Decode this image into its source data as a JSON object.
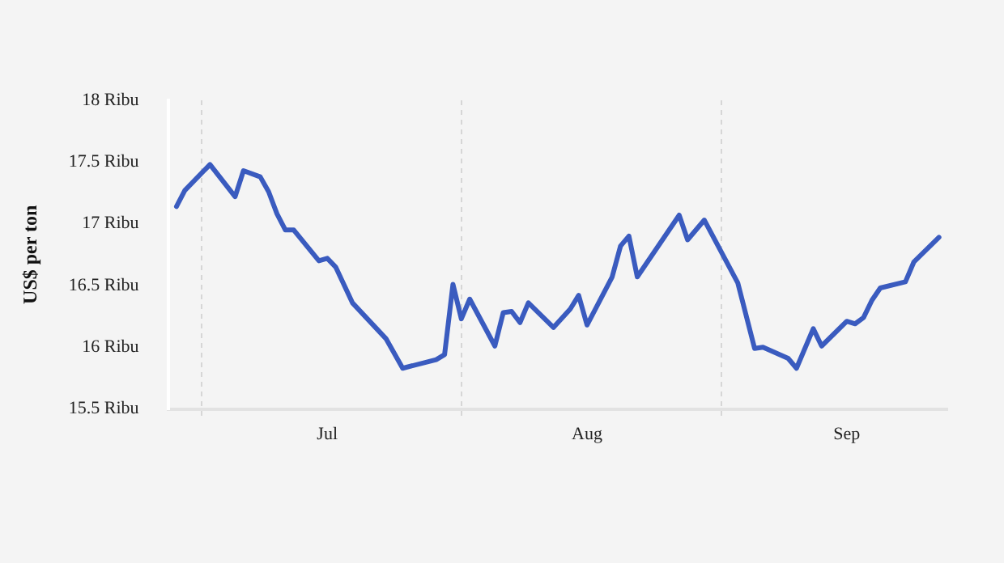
{
  "chart_data": {
    "type": "line",
    "ylabel": "US$ per ton",
    "x": [
      "--06-28",
      "--06-29",
      "--07-02",
      "--07-05",
      "--07-06",
      "--07-08",
      "--07-09",
      "--07-10",
      "--07-11",
      "--07-12",
      "--07-15",
      "--07-16",
      "--07-17",
      "--07-19",
      "--07-23",
      "--07-25",
      "--07-29",
      "--07-30",
      "--07-31",
      "--08-01",
      "--08-02",
      "--08-05",
      "--08-06",
      "--08-07",
      "--08-08",
      "--08-09",
      "--08-12",
      "--08-14",
      "--08-15",
      "--08-16",
      "--08-19",
      "--08-20",
      "--08-21",
      "--08-22",
      "--08-27",
      "--08-28",
      "--08-30",
      "--09-03",
      "--09-05",
      "--09-06",
      "--09-09",
      "--09-10",
      "--09-12",
      "--09-13",
      "--09-16",
      "--09-17",
      "--09-18",
      "--09-19",
      "--09-20",
      "--09-23",
      "--09-24",
      "--09-27"
    ],
    "series": [
      {
        "color": "#3a5bbf",
        "values": [
          17.14,
          17.27,
          17.48,
          17.22,
          17.43,
          17.38,
          17.26,
          17.08,
          16.95,
          16.95,
          16.7,
          16.72,
          16.65,
          16.36,
          16.07,
          15.83,
          15.9,
          15.94,
          16.51,
          16.23,
          16.39,
          16.01,
          16.28,
          16.29,
          16.2,
          16.36,
          16.16,
          16.31,
          16.42,
          16.18,
          16.57,
          16.82,
          16.9,
          16.57,
          17.07,
          16.87,
          17.03,
          16.52,
          15.99,
          16.0,
          15.91,
          15.83,
          16.15,
          16.01,
          16.21,
          16.19,
          16.24,
          16.38,
          16.48,
          16.53,
          16.69,
          16.89
        ]
      }
    ],
    "xlim": [
      "--06-27",
      "--09-28"
    ],
    "xticks": [
      {
        "value": "--07-01",
        "label": null
      },
      {
        "value": "--07-16",
        "label": "Jul"
      },
      {
        "value": "--08-01",
        "label": null
      },
      {
        "value": "--08-16",
        "label": "Aug"
      },
      {
        "value": "--09-01",
        "label": null
      },
      {
        "value": "--09-16",
        "label": "Sep"
      }
    ],
    "ylim": [
      15.5,
      18
    ],
    "yticks": [
      {
        "value": 15.5,
        "label": "15.5 Ribu"
      },
      {
        "value": 16,
        "label": "16 Ribu"
      },
      {
        "value": 16.5,
        "label": "16.5 Ribu"
      },
      {
        "value": 17,
        "label": "17 Ribu"
      },
      {
        "value": 17.5,
        "label": "17.5 Ribu"
      },
      {
        "value": 18,
        "label": "18 Ribu"
      }
    ],
    "grid": "x",
    "legend": false,
    "marker": "none",
    "line_style": "solid"
  }
}
